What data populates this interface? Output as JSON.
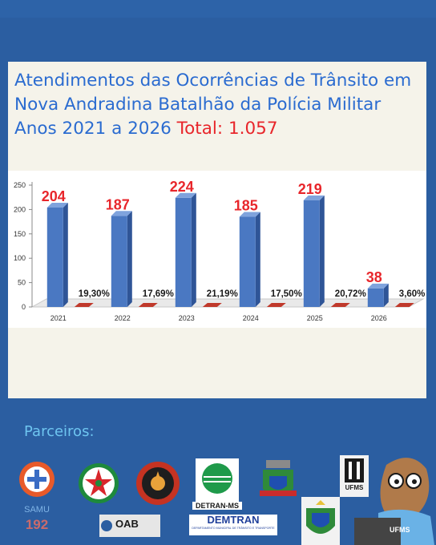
{
  "header": {
    "title_line1": "Atendimentos das Ocorrências de Trânsito em",
    "title_line2": "Nova Andradina Batalhão da Polícia Militar",
    "title_line3": "Anos 2021 a 2026",
    "total_label": "Total: 1.057"
  },
  "chart_data": {
    "type": "bar",
    "categories": [
      "2021",
      "2022",
      "2023",
      "2024",
      "2025",
      "2026"
    ],
    "series": [
      {
        "values": [
          204,
          187,
          224,
          185,
          219,
          38
        ]
      }
    ],
    "data_labels": [
      "204",
      "187",
      "224",
      "185",
      "219",
      "38"
    ],
    "percent_labels": [
      "19,30%",
      "17,69%",
      "21,19%",
      "17,50%",
      "20,72%",
      "3,60%"
    ],
    "percent_values": [
      19.3,
      17.69,
      21.19,
      17.5,
      20.72,
      3.6
    ],
    "yticks": [
      "0",
      "50",
      "100",
      "150",
      "200",
      "250"
    ],
    "ylim": [
      0,
      250
    ],
    "grid": false,
    "colors": {
      "bar": "#4a78c2",
      "bar_dark": "#2f5597",
      "value_label": "#e8262b",
      "percent_bar": "#c0392b"
    }
  },
  "partners": {
    "title": "Parceiros:",
    "logos": [
      {
        "icon": "samu-logo",
        "text_top": "SAMU",
        "text_bottom": "192"
      },
      {
        "icon": "red-cross-star-logo"
      },
      {
        "icon": "fire-department-logo"
      },
      {
        "icon": "detran-ms-logo",
        "text": "DETRAN-MS"
      },
      {
        "icon": "city-coat-of-arms-logo"
      },
      {
        "icon": "ufms-logo",
        "text": "UFMS"
      },
      {
        "icon": "ufms-mascot",
        "text": "UFMS"
      },
      {
        "icon": "oab-logo",
        "text": "OAB"
      },
      {
        "icon": "demtran-logo",
        "text": "DEMTRAN",
        "subtext": "DEPARTAMENTO MUNICIPAL DE TRÂNSITO E TRANSPORTE"
      },
      {
        "icon": "state-coat-of-arms-logo"
      }
    ]
  }
}
